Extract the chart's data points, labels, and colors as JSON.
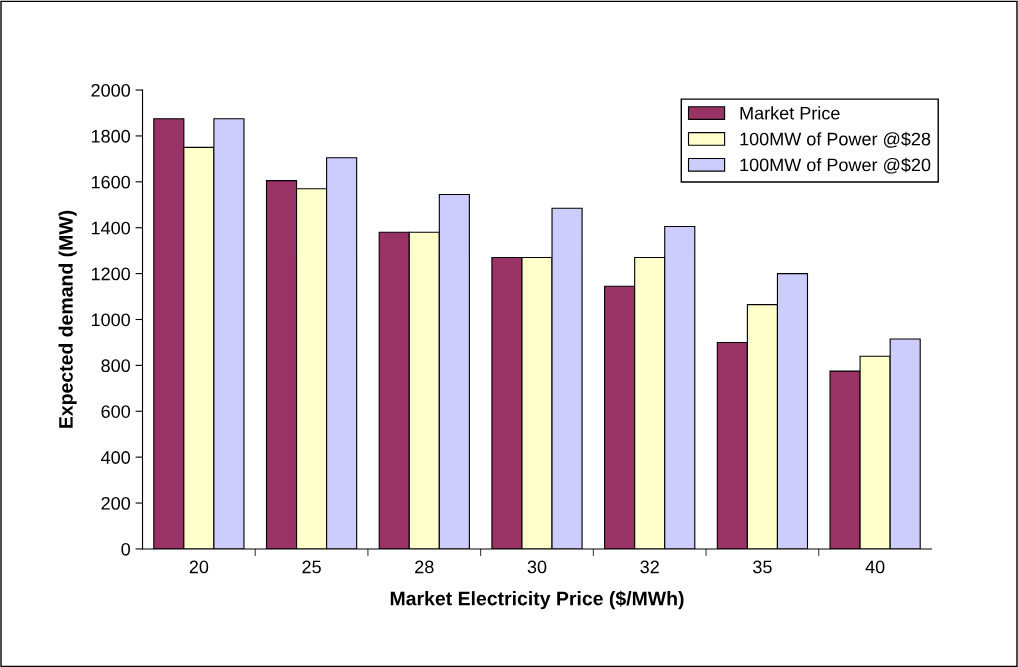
{
  "chart_data": {
    "type": "bar",
    "xlabel": "Market Electricity Price ($/MWh)",
    "ylabel": "Expected demand (MW)",
    "categories": [
      "20",
      "25",
      "28",
      "30",
      "32",
      "35",
      "40"
    ],
    "series": [
      {
        "name": "Market Price",
        "color": "#993366",
        "values": [
          1875,
          1605,
          1380,
          1270,
          1145,
          900,
          775
        ]
      },
      {
        "name": "100MW of Power @$28",
        "color": "#ffffcc",
        "values": [
          1750,
          1570,
          1380,
          1270,
          1270,
          1065,
          840
        ]
      },
      {
        "name": "100MW of Power @$20",
        "color": "#ccccff",
        "values": [
          1875,
          1705,
          1545,
          1485,
          1405,
          1200,
          915
        ]
      }
    ],
    "ylim": [
      0,
      2000
    ],
    "yticks": [
      0,
      200,
      400,
      600,
      800,
      1000,
      1200,
      1400,
      1600,
      1800,
      2000
    ],
    "grid": false,
    "legend": "top right"
  }
}
